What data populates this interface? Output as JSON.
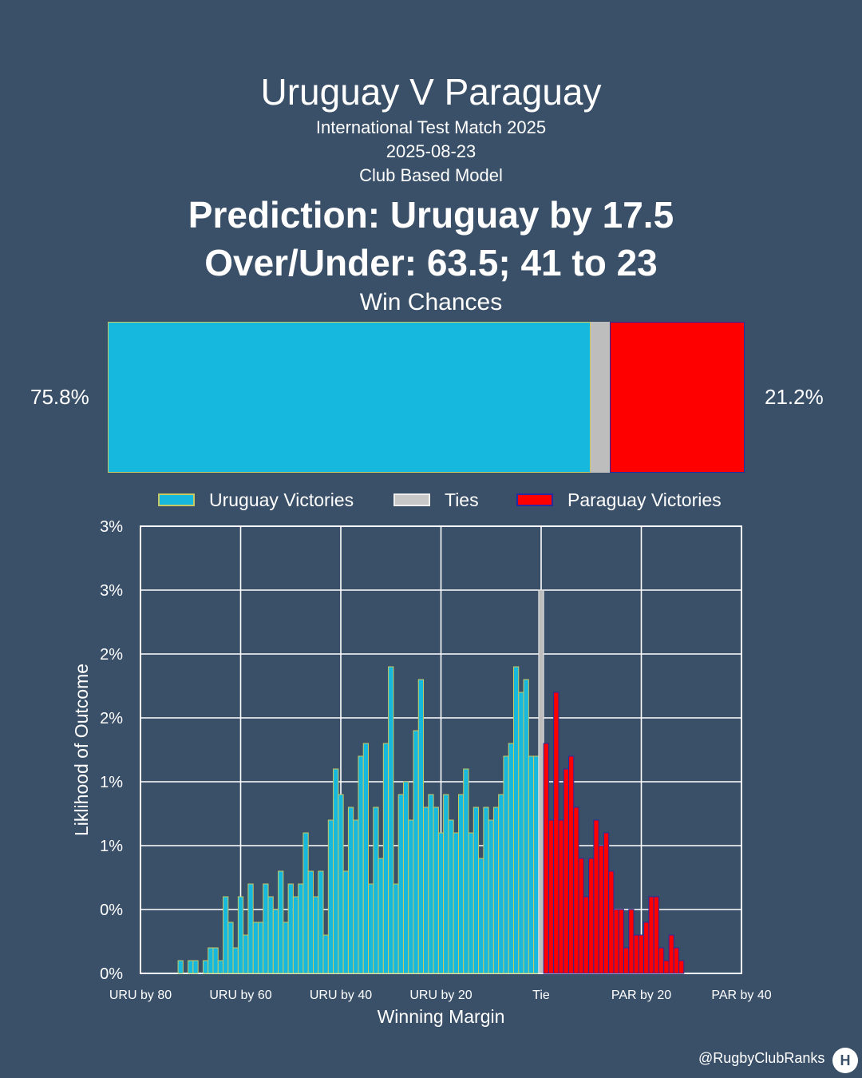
{
  "header": {
    "title": "Uruguay V Paraguay",
    "competition": "International Test Match 2025",
    "date": "2025-08-23",
    "model": "Club Based Model",
    "prediction": "Prediction: Uruguay by 17.5",
    "over_under": "Over/Under: 63.5; 41 to 23"
  },
  "win_chances": {
    "title": "Win Chances",
    "uruguay_pct": 75.8,
    "tie_pct": 3.0,
    "paraguay_pct": 21.2,
    "uruguay_label": "75.8%",
    "paraguay_label": "21.2%"
  },
  "legend": {
    "uruguay": "Uruguay Victories",
    "ties": "Ties",
    "paraguay": "Paraguay Victories"
  },
  "colors": {
    "background": "#3a5068",
    "uruguay": "#16b8de",
    "uruguay_edge": "#c8c864",
    "tie": "#bdbdbd",
    "paraguay": "#ff0000",
    "paraguay_edge": "#2a2aa0",
    "grid": "#ffffff"
  },
  "chart_data": {
    "type": "bar",
    "title": "",
    "xlabel": "Winning Margin",
    "ylabel": "Liklihood of Outcome",
    "xlim": [
      -80,
      40
    ],
    "ylim": [
      0,
      3.5
    ],
    "x_ticks": [
      -80,
      -60,
      -40,
      -20,
      0,
      20,
      40
    ],
    "x_tick_labels": [
      "URU by 80",
      "URU by 60",
      "URU by 40",
      "URU by 20",
      "Tie",
      "PAR by 20",
      "PAR by 40"
    ],
    "y_ticks": [
      0,
      0.5,
      1.0,
      1.5,
      2.0,
      2.5,
      3.0,
      3.5
    ],
    "y_tick_labels": [
      "0%",
      "0%",
      "1%",
      "1%",
      "2%",
      "2%",
      "3%",
      "3%"
    ],
    "grid": true,
    "series": [
      {
        "name": "Uruguay Victories",
        "x": [
          -72,
          -70,
          -69,
          -67,
          -66,
          -65,
          -64,
          -63,
          -62,
          -61,
          -60,
          -59,
          -58,
          -57,
          -56,
          -55,
          -54,
          -53,
          -52,
          -51,
          -50,
          -49,
          -48,
          -47,
          -46,
          -45,
          -44,
          -43,
          -42,
          -41,
          -40,
          -39,
          -38,
          -37,
          -36,
          -35,
          -34,
          -33,
          -32,
          -31,
          -30,
          -29,
          -28,
          -27,
          -26,
          -25,
          -24,
          -23,
          -22,
          -21,
          -20,
          -19,
          -18,
          -17,
          -16,
          -15,
          -14,
          -13,
          -12,
          -11,
          -10,
          -9,
          -8,
          -7,
          -6,
          -5,
          -4,
          -3,
          -2,
          -1
        ],
        "values": [
          0.1,
          0.1,
          0.1,
          0.1,
          0.2,
          0.2,
          0.1,
          0.6,
          0.4,
          0.2,
          0.6,
          0.3,
          0.7,
          0.4,
          0.4,
          0.7,
          0.6,
          0.5,
          0.8,
          0.4,
          0.7,
          0.6,
          0.7,
          1.1,
          0.8,
          0.6,
          0.8,
          0.3,
          1.2,
          1.6,
          1.4,
          0.8,
          1.3,
          1.2,
          1.7,
          1.8,
          0.7,
          1.3,
          0.9,
          1.8,
          2.4,
          0.7,
          1.4,
          1.5,
          1.2,
          1.9,
          2.3,
          1.3,
          1.4,
          1.3,
          1.1,
          1.4,
          1.2,
          1.1,
          1.4,
          1.6,
          1.1,
          1.3,
          0.9,
          1.3,
          1.2,
          1.3,
          1.4,
          1.7,
          1.8,
          2.4,
          2.2,
          2.3,
          1.7,
          1.7
        ],
        "color": "#16b8de"
      },
      {
        "name": "Ties",
        "x": [
          0
        ],
        "values": [
          3.0
        ],
        "color": "#bdbdbd"
      },
      {
        "name": "Paraguay Victories",
        "x": [
          1,
          2,
          3,
          4,
          5,
          6,
          7,
          8,
          9,
          10,
          11,
          12,
          13,
          14,
          15,
          16,
          17,
          18,
          19,
          20,
          21,
          22,
          23,
          24,
          25,
          26,
          27,
          28
        ],
        "values": [
          1.8,
          1.2,
          2.2,
          1.2,
          1.6,
          1.7,
          1.3,
          0.9,
          0.6,
          0.9,
          1.2,
          1.0,
          1.1,
          0.8,
          0.5,
          0.5,
          0.2,
          0.5,
          0.3,
          0.3,
          0.4,
          0.6,
          0.6,
          0.2,
          0.1,
          0.3,
          0.2,
          0.1
        ],
        "color": "#ff0000"
      }
    ]
  },
  "footer": {
    "credit": "@RugbyClubRanks"
  }
}
